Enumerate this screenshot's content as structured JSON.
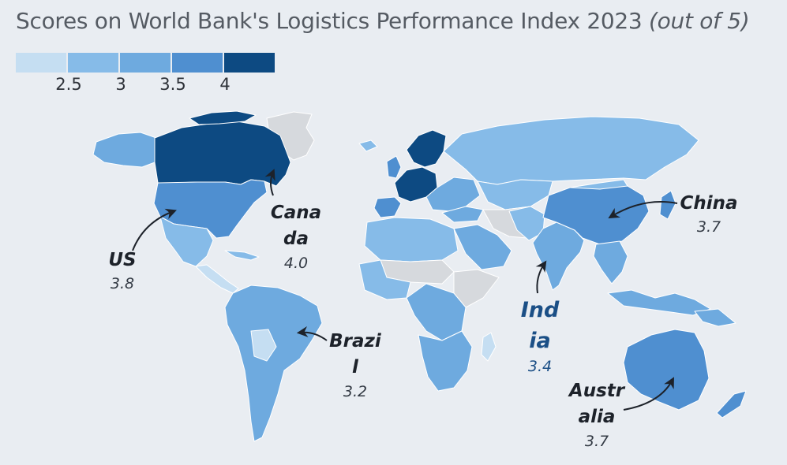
{
  "title": {
    "main": "Scores on World Bank's Logistics Performance Index 2023",
    "suffix": "(out of 5)"
  },
  "legend": {
    "colors": [
      "#c5def2",
      "#86bbe8",
      "#6eaadf",
      "#4f8fd0",
      "#0d4a82"
    ],
    "ticks": [
      "2.5",
      "3",
      "3.5",
      "4"
    ]
  },
  "map_colors": {
    "ocean": "#e9edf2",
    "no_data": "#d6d9dd",
    "band_1": "#c5def2",
    "band_2": "#86bbe8",
    "band_3": "#6eaadf",
    "band_4": "#4f8fd0",
    "band_5": "#0d4a82"
  },
  "callouts": {
    "us": {
      "name_line1": "US",
      "name_line2": "",
      "score": "3.8"
    },
    "canada": {
      "name_line1": "Cana",
      "name_line2": "da",
      "score": "4.0"
    },
    "brazil": {
      "name_line1": "Brazi",
      "name_line2": "l",
      "score": "3.2"
    },
    "india": {
      "name_line1": "Ind",
      "name_line2": "ia",
      "score": "3.4"
    },
    "china": {
      "name_line1": "China",
      "name_line2": "",
      "score": "3.7"
    },
    "australia": {
      "name_line1": "Austr",
      "name_line2": "alia",
      "score": "3.7"
    }
  }
}
